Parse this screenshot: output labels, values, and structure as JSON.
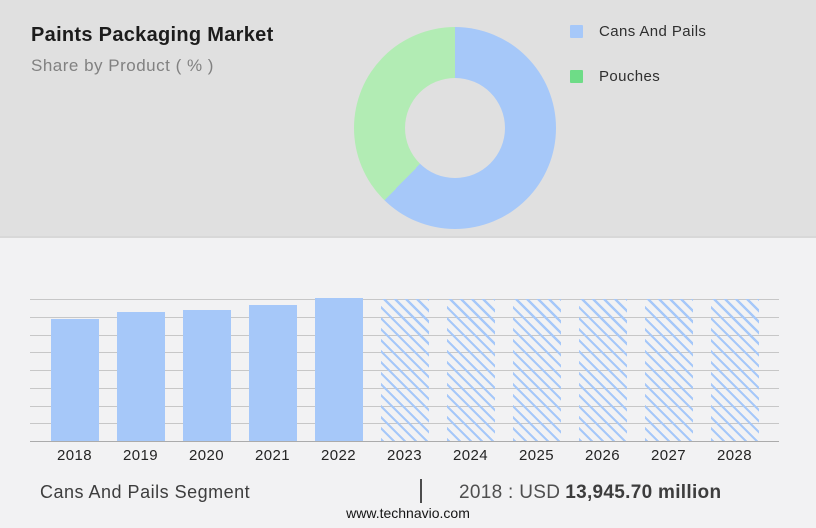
{
  "header": {
    "title": "Paints Packaging Market",
    "subtitle": "Share by Product ( % )"
  },
  "legend": {
    "items": [
      {
        "label": "Cans And Pails",
        "color": "#a6c8f9"
      },
      {
        "label": "Pouches",
        "color": "#6edc87"
      }
    ]
  },
  "footer": {
    "segment_label": "Cans And Pails Segment",
    "separator": "|",
    "value_prefix": "2018 : USD",
    "value_bold": "13,945.70 million",
    "website": "www.technavio.com"
  },
  "colors": {
    "top_band_bg": "#e0e0e0",
    "bottom_band_bg": "#f2f2f3",
    "band_divider": "#d8d8d8",
    "bar_blue": "#a6c8f9",
    "donut_green": "#b2ecb4",
    "legend_green": "#6edc87",
    "gridline_color": "#c7c7c7",
    "axis_color": "#ababab",
    "title_color": "#1c1c1c",
    "subtitle_color": "#818181"
  },
  "chart_data": [
    {
      "type": "pie",
      "subtype": "donut",
      "title": "Paints Packaging Market",
      "subtitle": "Share by Product ( % )",
      "legend_position": "right",
      "segments": [
        {
          "label": "Cans And Pails",
          "value_pct": 62.3,
          "color": "#a6c8f9"
        },
        {
          "label": "Pouches",
          "value_pct": 37.7,
          "color": "#b2ecb4"
        }
      ],
      "note": "No data labels shown; shares estimated from arc angles (blue starts at 12 o'clock, clockwise)."
    },
    {
      "type": "bar",
      "categories": [
        "2018",
        "2019",
        "2020",
        "2021",
        "2022",
        "2023",
        "2024",
        "2025",
        "2026",
        "2027",
        "2028"
      ],
      "bars": [
        {
          "year": "2018",
          "relative_height_pct": 86,
          "style": "solid"
        },
        {
          "year": "2019",
          "relative_height_pct": 91,
          "style": "solid"
        },
        {
          "year": "2020",
          "relative_height_pct": 92,
          "style": "solid"
        },
        {
          "year": "2021",
          "relative_height_pct": 96,
          "style": "solid"
        },
        {
          "year": "2022",
          "relative_height_pct": 101,
          "style": "solid"
        },
        {
          "year": "2023",
          "relative_height_pct": 100,
          "style": "hatched"
        },
        {
          "year": "2024",
          "relative_height_pct": 100,
          "style": "hatched"
        },
        {
          "year": "2025",
          "relative_height_pct": 100,
          "style": "hatched"
        },
        {
          "year": "2026",
          "relative_height_pct": 100,
          "style": "hatched"
        },
        {
          "year": "2027",
          "relative_height_pct": 100,
          "style": "hatched"
        },
        {
          "year": "2028",
          "relative_height_pct": 100,
          "style": "hatched"
        }
      ],
      "known_values": {
        "2018": "USD 13,945.70 million"
      },
      "xlabel": "",
      "ylabel": "",
      "y_axis_labels_shown": false,
      "gridlines": true,
      "note": "Bar heights estimated in % of top gridline; solid = actual (2018-2022), hatched = forecast (2023-2028)."
    }
  ]
}
